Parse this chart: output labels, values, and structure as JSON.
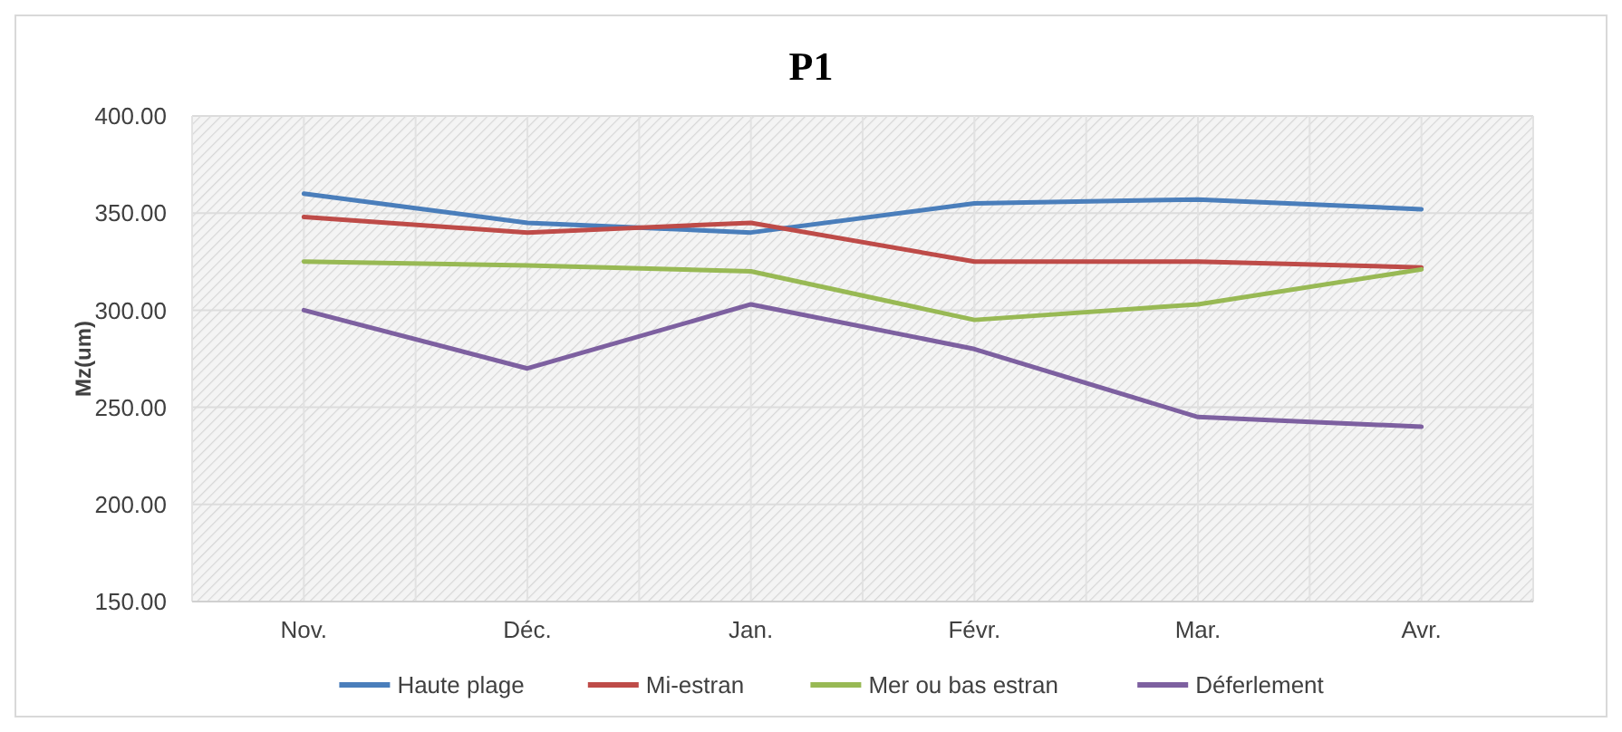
{
  "chart_data": {
    "type": "line",
    "title": "P1",
    "ylabel": "Mz(um)",
    "categories": [
      "Nov.",
      "Déc.",
      "Jan.",
      "Févr.",
      "Mar.",
      "Avr."
    ],
    "series": [
      {
        "name": "Haute plage",
        "color": "#4a7ebb",
        "values": [
          360,
          345,
          340,
          355,
          357,
          352
        ]
      },
      {
        "name": "Mi-estran",
        "color": "#be4b48",
        "values": [
          348,
          340,
          345,
          325,
          325,
          322
        ]
      },
      {
        "name": "Mer ou bas estran",
        "color": "#98b954",
        "values": [
          325,
          323,
          320,
          295,
          303,
          321
        ]
      },
      {
        "name": "Déferlement",
        "color": "#7d60a0",
        "values": [
          300,
          270,
          303,
          280,
          245,
          240
        ]
      }
    ],
    "ylim": [
      150,
      400
    ],
    "yticks": [
      {
        "value": 150,
        "label": "150.00"
      },
      {
        "value": 200,
        "label": "200.00"
      },
      {
        "value": 250,
        "label": "250.00"
      },
      {
        "value": 300,
        "label": "300.00"
      },
      {
        "value": 350,
        "label": "350.00"
      },
      {
        "value": 400,
        "label": "400.00"
      }
    ],
    "grid": true,
    "legend": "bottom",
    "marker": "none",
    "line_style": "solid"
  }
}
